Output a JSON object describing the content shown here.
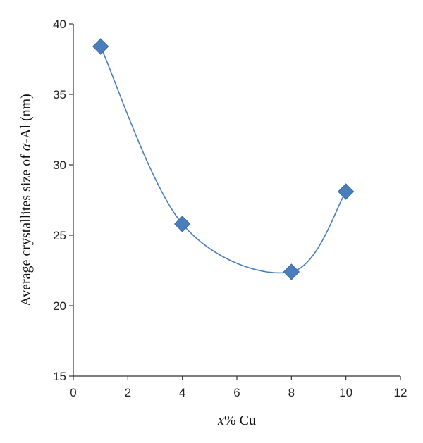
{
  "chart_data": {
    "type": "scatter",
    "title": "",
    "xlabel": "x% Cu",
    "xlabel_italic_part": "x",
    "xlabel_rest": "% Cu",
    "ylabel": "Average crystallites size of α-Al (nm)",
    "ylabel_pre": "Average crystallites size of ",
    "ylabel_italic_part": "α",
    "ylabel_post": "-Al (nm)",
    "xlim": [
      0,
      12
    ],
    "ylim": [
      15,
      40
    ],
    "xticks": [
      0,
      2,
      4,
      6,
      8,
      10,
      12
    ],
    "yticks": [
      15,
      20,
      25,
      30,
      35,
      40
    ],
    "grid": false,
    "legend": "none",
    "marker": "diamond",
    "smooth_line": true,
    "colors": {
      "marker_fill": "#4a7ebb",
      "marker_stroke": "#3a6aa8",
      "line": "#4a7ebb",
      "axis": "#333333"
    },
    "series": [
      {
        "x": [
          1,
          4,
          8,
          10
        ],
        "y": [
          38.4,
          25.8,
          22.4,
          28.1
        ]
      }
    ]
  }
}
